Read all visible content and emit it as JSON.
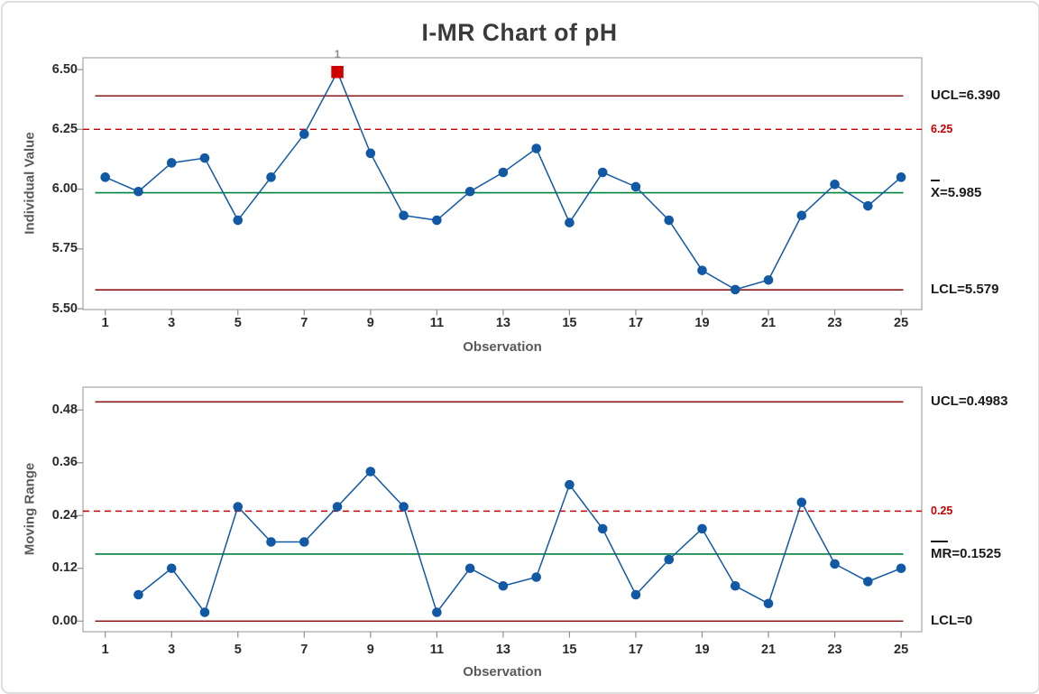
{
  "title": "I-MR Chart of pH",
  "colors": {
    "series_blue": "#1158A5",
    "center_green": "#00813E",
    "control_limit_maroon": "#8B1A1A",
    "spec_red": "#C40000",
    "out_of_control_red": "#CE0000",
    "flag_gray": "#8C8C8C",
    "title_text": "#3A3A3A",
    "axis_title_text": "#5A5A5A",
    "tick_text": "#2B2B2B",
    "plot_border": "#A5A5A5"
  },
  "chart_data": [
    {
      "type": "line",
      "name": "individuals",
      "title": "",
      "ylabel": "Individual Value",
      "xlabel": "Observation",
      "ylim": [
        5.5,
        6.55
      ],
      "yticks": [
        "6.50",
        "6.25",
        "6.00",
        "5.75",
        "5.50"
      ],
      "xticks": [
        "1",
        "3",
        "5",
        "7",
        "9",
        "11",
        "13",
        "15",
        "17",
        "19",
        "21",
        "23",
        "25"
      ],
      "x": [
        1,
        2,
        3,
        4,
        5,
        6,
        7,
        8,
        9,
        10,
        11,
        12,
        13,
        14,
        15,
        16,
        17,
        18,
        19,
        20,
        21,
        22,
        23,
        24,
        25
      ],
      "values": [
        6.05,
        5.99,
        6.11,
        6.13,
        5.87,
        6.05,
        6.23,
        6.49,
        6.15,
        5.89,
        5.87,
        5.99,
        6.07,
        6.17,
        5.86,
        6.07,
        6.01,
        5.87,
        5.66,
        5.58,
        5.62,
        5.89,
        6.02,
        5.93,
        6.05
      ],
      "limits": {
        "ucl": {
          "value": 6.39,
          "label": "UCL=6.390"
        },
        "spec": {
          "value": 6.25,
          "label": "6.25"
        },
        "center": {
          "value": 5.985,
          "label": "X=5.985",
          "overbar": "X"
        },
        "lcl": {
          "value": 5.579,
          "label": "LCL=5.579"
        }
      },
      "out_of_control": [
        {
          "x": 8,
          "flag": "1"
        }
      ]
    },
    {
      "type": "line",
      "name": "moving-range",
      "title": "",
      "ylabel": "Moving Range",
      "xlabel": "Observation",
      "ylim": [
        0.0,
        0.53
      ],
      "yticks": [
        "0.48",
        "0.36",
        "0.24",
        "0.12",
        "0.00"
      ],
      "xticks": [
        "1",
        "3",
        "5",
        "7",
        "9",
        "11",
        "13",
        "15",
        "17",
        "19",
        "21",
        "23",
        "25"
      ],
      "x": [
        2,
        3,
        4,
        5,
        6,
        7,
        8,
        9,
        10,
        11,
        12,
        13,
        14,
        15,
        16,
        17,
        18,
        19,
        20,
        21,
        22,
        23,
        24,
        25
      ],
      "values": [
        0.06,
        0.12,
        0.02,
        0.26,
        0.18,
        0.18,
        0.26,
        0.34,
        0.26,
        0.02,
        0.12,
        0.08,
        0.1,
        0.31,
        0.21,
        0.06,
        0.14,
        0.21,
        0.08,
        0.04,
        0.27,
        0.13,
        0.09,
        0.12
      ],
      "limits": {
        "ucl": {
          "value": 0.4983,
          "label": "UCL=0.4983"
        },
        "spec": {
          "value": 0.25,
          "label": "0.25"
        },
        "center": {
          "value": 0.1525,
          "label": "MR=0.1525",
          "overbar": "MR"
        },
        "lcl": {
          "value": 0,
          "label": "LCL=0"
        }
      },
      "out_of_control": []
    }
  ]
}
